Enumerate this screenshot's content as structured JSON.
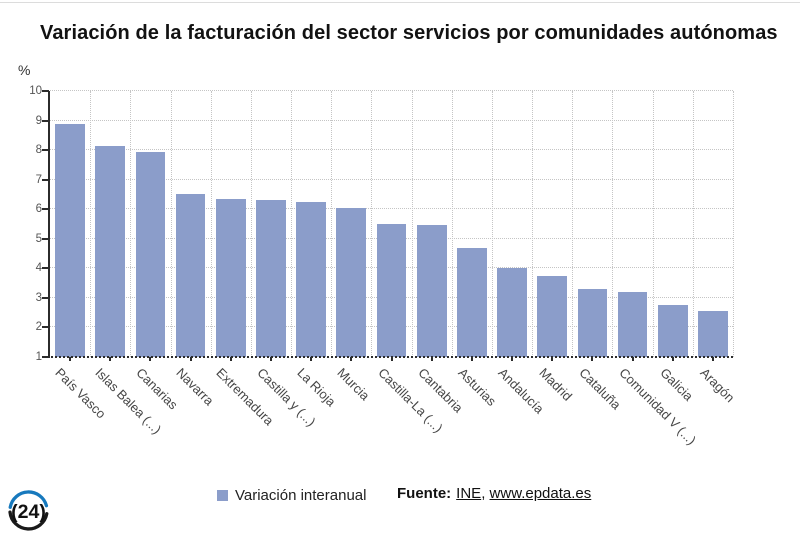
{
  "title": "Variación de la facturación del sector servicios por comunidades autónomas",
  "chart_data": {
    "type": "bar",
    "title": "Variación de la facturación del sector servicios por comunidades autónomas",
    "unit_label": "%",
    "xlabel": "",
    "ylabel": "%",
    "ylim": [
      1,
      10
    ],
    "yticks": [
      1,
      2,
      3,
      4,
      5,
      6,
      7,
      8,
      9,
      10
    ],
    "grid": true,
    "legend_position": "bottom",
    "bar_color": "#8B9DCA",
    "series_name": "Variación interanual",
    "categories": [
      "País Vasco",
      "Islas Balea (...)",
      "Canarias",
      "Navarra",
      "Extremadura",
      "Castilla y (...)",
      "La Rioja",
      "Murcia",
      "Castilla-La (...)",
      "Cantabria",
      "Asturias",
      "Andalucía",
      "Madrid",
      "Cataluña",
      "Comunidad V (...)",
      "Galicia",
      "Aragón"
    ],
    "values": [
      8.9,
      8.15,
      7.95,
      6.5,
      6.35,
      6.3,
      6.25,
      6.05,
      5.5,
      5.45,
      4.7,
      4.0,
      3.75,
      3.3,
      3.2,
      2.75,
      2.55
    ]
  },
  "legend": {
    "label": "Variación interanual",
    "swatch_color": "#8B9DCA"
  },
  "source": {
    "label": "Fuente:",
    "link_ine": "INE",
    "separator": ", ",
    "link_epdata": "www.epdata.es"
  },
  "logo": {
    "text": "(24)",
    "arc_blue": "#1779bd",
    "arc_black": "#1a1a1a"
  },
  "colors": {
    "grid": "#c5c5c5",
    "axis": "#2b2b2b",
    "tick_label": "#555555",
    "category_label": "#464646"
  }
}
